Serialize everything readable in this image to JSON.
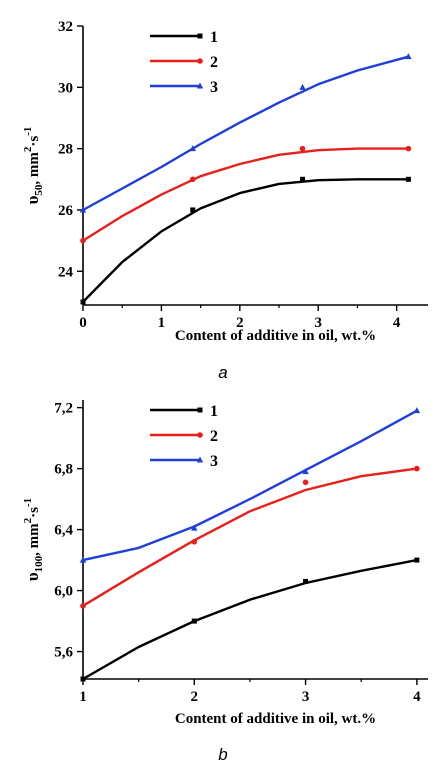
{
  "chart_data": [
    {
      "type": "line",
      "panel_label": "a",
      "xlabel": "Content of additive in oil, wt.%",
      "ylabel": {
        "base": "υ",
        "sub": "50",
        "rest": ", mm",
        "sup1": "2",
        "mid": "·s",
        "sup2": "-1"
      },
      "xlim": [
        0,
        4.4
      ],
      "ylim": [
        22.9,
        32
      ],
      "x_ticks": [
        0,
        1,
        2,
        3,
        4
      ],
      "y_ticks": [
        24,
        26,
        28,
        30,
        32
      ],
      "legend_position": "top-left",
      "grid": false,
      "series": [
        {
          "name": "1",
          "color": "#000000",
          "marker": "square",
          "points": [
            [
              0,
              23.0
            ],
            [
              1.4,
              26.0
            ],
            [
              2.8,
              27.0
            ],
            [
              4.15,
              27.0
            ]
          ],
          "curve": [
            [
              0,
              23.0
            ],
            [
              0.5,
              24.3
            ],
            [
              1.0,
              25.3
            ],
            [
              1.5,
              26.05
            ],
            [
              2.0,
              26.55
            ],
            [
              2.5,
              26.85
            ],
            [
              3.0,
              26.97
            ],
            [
              3.5,
              27.0
            ],
            [
              4.15,
              27.0
            ]
          ]
        },
        {
          "name": "2",
          "color": "#e8201b",
          "marker": "circle",
          "points": [
            [
              0,
              25.0
            ],
            [
              1.4,
              27.0
            ],
            [
              2.8,
              28.0
            ],
            [
              4.15,
              28.0
            ]
          ],
          "curve": [
            [
              0,
              25.0
            ],
            [
              0.5,
              25.8
            ],
            [
              1.0,
              26.5
            ],
            [
              1.5,
              27.1
            ],
            [
              2.0,
              27.5
            ],
            [
              2.5,
              27.8
            ],
            [
              3.0,
              27.95
            ],
            [
              3.5,
              28.0
            ],
            [
              4.15,
              28.0
            ]
          ]
        },
        {
          "name": "3",
          "color": "#1f3fd8",
          "marker": "triangle",
          "points": [
            [
              0,
              26.0
            ],
            [
              1.4,
              28.0
            ],
            [
              2.8,
              30.0
            ],
            [
              4.15,
              31.0
            ]
          ],
          "curve": [
            [
              0,
              26.0
            ],
            [
              0.5,
              26.7
            ],
            [
              1.0,
              27.4
            ],
            [
              1.5,
              28.15
            ],
            [
              2.0,
              28.85
            ],
            [
              2.5,
              29.5
            ],
            [
              3.0,
              30.1
            ],
            [
              3.5,
              30.55
            ],
            [
              4.15,
              31.0
            ]
          ]
        }
      ]
    },
    {
      "type": "line",
      "panel_label": "b",
      "xlabel": "Content of additive in oil, wt.%",
      "ylabel": {
        "base": "υ",
        "sub": "100",
        "rest": ", mm",
        "sup1": "2",
        "mid": "·s",
        "sup2": "-1"
      },
      "xlim": [
        1,
        4.1
      ],
      "ylim": [
        5.42,
        7.25
      ],
      "x_ticks": [
        1,
        2,
        3,
        4
      ],
      "y_ticks": [
        5.6,
        6.0,
        6.4,
        6.8,
        7.2
      ],
      "y_tick_labels": [
        "5,6",
        "6,0",
        "6,4",
        "6,8",
        "7,2"
      ],
      "legend_position": "top-left",
      "grid": false,
      "series": [
        {
          "name": "1",
          "color": "#000000",
          "marker": "square",
          "points": [
            [
              1,
              5.42
            ],
            [
              2,
              5.8
            ],
            [
              3,
              6.06
            ],
            [
              4,
              6.2
            ]
          ],
          "curve": [
            [
              1,
              5.42
            ],
            [
              1.5,
              5.63
            ],
            [
              2,
              5.8
            ],
            [
              2.5,
              5.94
            ],
            [
              3,
              6.05
            ],
            [
              3.5,
              6.13
            ],
            [
              4,
              6.2
            ]
          ]
        },
        {
          "name": "2",
          "color": "#e8201b",
          "marker": "circle",
          "points": [
            [
              1,
              5.9
            ],
            [
              2,
              6.32
            ],
            [
              3,
              6.71
            ],
            [
              4,
              6.8
            ]
          ],
          "curve": [
            [
              1,
              5.9
            ],
            [
              1.5,
              6.12
            ],
            [
              2,
              6.33
            ],
            [
              2.5,
              6.52
            ],
            [
              3,
              6.66
            ],
            [
              3.5,
              6.75
            ],
            [
              4,
              6.8
            ]
          ]
        },
        {
          "name": "3",
          "color": "#1f3fd8",
          "marker": "triangle",
          "points": [
            [
              1,
              6.2
            ],
            [
              2,
              6.41
            ],
            [
              3,
              6.78
            ],
            [
              4,
              7.18
            ]
          ],
          "curve": [
            [
              1,
              6.2
            ],
            [
              1.5,
              6.28
            ],
            [
              2,
              6.42
            ],
            [
              2.5,
              6.6
            ],
            [
              3,
              6.79
            ],
            [
              3.5,
              6.98
            ],
            [
              4,
              7.18
            ]
          ]
        }
      ]
    }
  ]
}
